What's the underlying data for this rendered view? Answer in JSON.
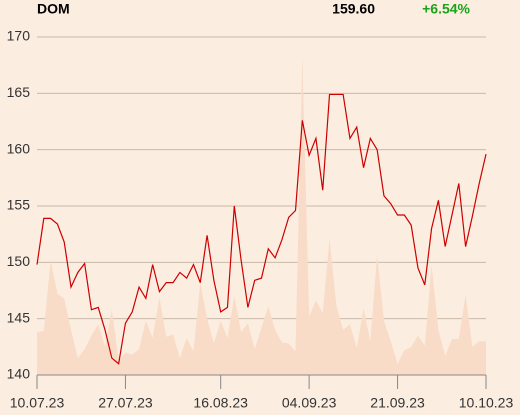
{
  "chart_data": {
    "type": "line",
    "title": "DOM",
    "last_price": {
      "value": 159.6,
      "label": "159.60"
    },
    "change": {
      "value": 6.54,
      "label": "+6.54%"
    },
    "categories": [
      "10.07.23",
      null,
      null,
      null,
      null,
      null,
      null,
      null,
      null,
      null,
      null,
      null,
      null,
      "27.07.23",
      null,
      null,
      null,
      null,
      null,
      null,
      null,
      null,
      null,
      null,
      null,
      null,
      null,
      "16.08.23",
      null,
      null,
      null,
      null,
      null,
      null,
      null,
      null,
      null,
      null,
      null,
      null,
      "04.09.23",
      null,
      null,
      null,
      null,
      null,
      null,
      null,
      null,
      null,
      null,
      null,
      null,
      "21.09.23",
      null,
      null,
      null,
      null,
      null,
      null,
      null,
      null,
      null,
      null,
      null,
      null,
      "10.10.23"
    ],
    "series": [
      {
        "kind": "area",
        "color": "#f8dcc7",
        "values": [
          143.8,
          143.9,
          150.2,
          147.2,
          146.8,
          144.0,
          141.5,
          142.3,
          143.5,
          144.5,
          142.5,
          145.8,
          141.3,
          142.0,
          141.8,
          142.3,
          144.8,
          143.3,
          146.9,
          143.4,
          143.6,
          141.5,
          143.3,
          142.1,
          148.2,
          145.0,
          142.8,
          144.8,
          143.3,
          147.0,
          143.8,
          144.6,
          142.3,
          144.2,
          146.1,
          144.0,
          142.9,
          142.8,
          142.1,
          168.4,
          145.2,
          146.6,
          145.5,
          152.1,
          146.2,
          144.0,
          144.5,
          142.4,
          145.9,
          143.0,
          150.7,
          144.8,
          143.0,
          141.0,
          142.2,
          142.5,
          143.5,
          142.6,
          149.8,
          144.0,
          141.7,
          143.2,
          143.2,
          147.1,
          142.5,
          143.0,
          143.0
        ]
      },
      {
        "kind": "line",
        "color": "#cc0000",
        "values": [
          149.8,
          153.9,
          153.9,
          153.4,
          151.8,
          147.8,
          149.1,
          149.9,
          145.8,
          146.0,
          144.0,
          141.5,
          141.0,
          144.6,
          145.6,
          147.8,
          146.8,
          149.8,
          147.4,
          148.2,
          148.2,
          149.1,
          148.6,
          149.8,
          148.2,
          152.4,
          148.4,
          145.6,
          146.0,
          155.0,
          150.2,
          146.0,
          148.4,
          148.6,
          151.2,
          150.4,
          152.0,
          154.0,
          154.6,
          162.6,
          159.5,
          161.0,
          156.4,
          164.9,
          164.9,
          164.9,
          161.0,
          162.0,
          158.4,
          161.0,
          160.0,
          155.9,
          155.2,
          154.2,
          154.2,
          153.3,
          149.5,
          148.0,
          153.0,
          155.5,
          151.4,
          154.2,
          157.0,
          151.4,
          154.1,
          157.0,
          159.6
        ]
      }
    ],
    "ylim": [
      140,
      170
    ],
    "yticks": [
      140,
      145,
      150,
      155,
      160,
      165,
      170
    ],
    "grid": true
  }
}
